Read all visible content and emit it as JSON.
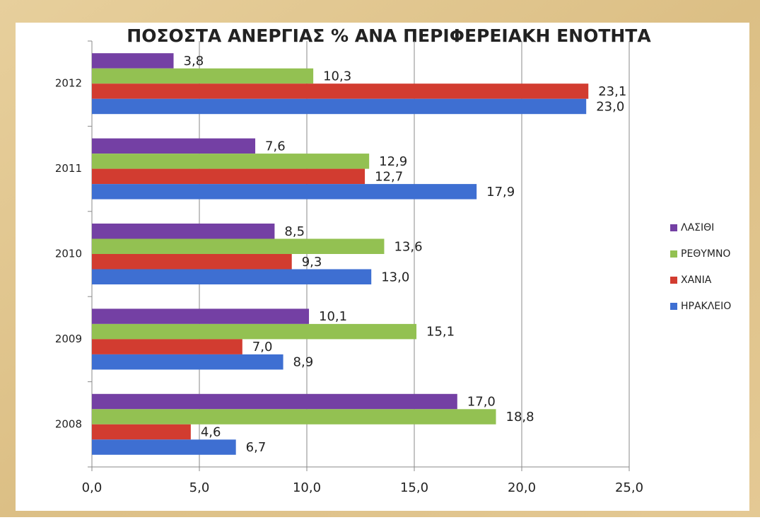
{
  "chart_data": {
    "type": "barh",
    "title": "ΠΟΣΟΣΤΑ ΑΝΕΡΓΙΑΣ % ΑΝΑ ΠΕΡΙΦΕΡΕΙΑΚΗ ΕΝΟΤΗΤΑ",
    "categories": [
      "2008",
      "2009",
      "2010",
      "2011",
      "2012"
    ],
    "series": [
      {
        "name": "ΛΑΣΙΘΙ",
        "color": "#7440a4",
        "values": [
          17.0,
          10.1,
          8.5,
          7.6,
          3.8
        ],
        "value_labels": [
          "17,0",
          "10,1",
          "8,5",
          "7,6",
          "3,8"
        ]
      },
      {
        "name": "ΡΕΘΥΜΝΟ",
        "color": "#93c152",
        "values": [
          18.8,
          15.1,
          13.6,
          12.9,
          10.3
        ],
        "value_labels": [
          "18,8",
          "15,1",
          "13,6",
          "12,9",
          "10,3"
        ]
      },
      {
        "name": "ΧΑΝΙΑ",
        "color": "#d23c30",
        "values": [
          4.6,
          7.0,
          9.3,
          12.7,
          23.1
        ],
        "value_labels": [
          "4,6",
          "7,0",
          "9,3",
          "12,7",
          "23,1"
        ]
      },
      {
        "name": "ΗΡΑΚΛΕΙΟ",
        "color": "#3e6fd2",
        "values": [
          6.7,
          8.9,
          13.0,
          17.9,
          23.0
        ],
        "value_labels": [
          "6,7",
          "8,9",
          "13,0",
          "17,9",
          "23,0"
        ]
      }
    ],
    "xlim": [
      0,
      25
    ],
    "xticks": [
      {
        "value": 0,
        "label": "0,0"
      },
      {
        "value": 5,
        "label": "5,0"
      },
      {
        "value": 10,
        "label": "10,0"
      },
      {
        "value": 15,
        "label": "15,0"
      },
      {
        "value": 20,
        "label": "20,0"
      },
      {
        "value": 25,
        "label": "25,0"
      }
    ],
    "grid": true,
    "legend": "right"
  }
}
